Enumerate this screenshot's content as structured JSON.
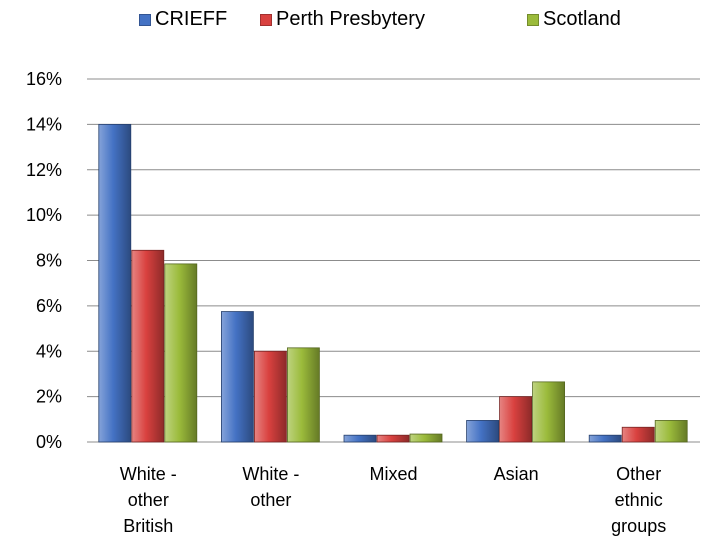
{
  "chart_data": {
    "type": "bar",
    "categories": [
      [
        "White -",
        "other",
        "British"
      ],
      [
        "White -",
        "other"
      ],
      [
        "Mixed"
      ],
      [
        "Asian"
      ],
      [
        "Other",
        "ethnic",
        "groups"
      ]
    ],
    "series": [
      {
        "name": "CRIEFF",
        "color": "#4472C4",
        "values": [
          14.0,
          5.75,
          0.3,
          0.95,
          0.3
        ]
      },
      {
        "name": "Perth Presbytery",
        "color": "#D9413F",
        "values": [
          8.45,
          4.0,
          0.3,
          2.0,
          0.65
        ]
      },
      {
        "name": "Scotland",
        "color": "#9BBB3B",
        "values": [
          7.85,
          4.15,
          0.35,
          2.65,
          0.95
        ]
      }
    ],
    "yticks": [
      "0%",
      "2%",
      "4%",
      "6%",
      "8%",
      "10%",
      "12%",
      "14%",
      "16%"
    ],
    "ylim": [
      0,
      16
    ],
    "ystep": 2,
    "grid": true,
    "legend": "top"
  }
}
